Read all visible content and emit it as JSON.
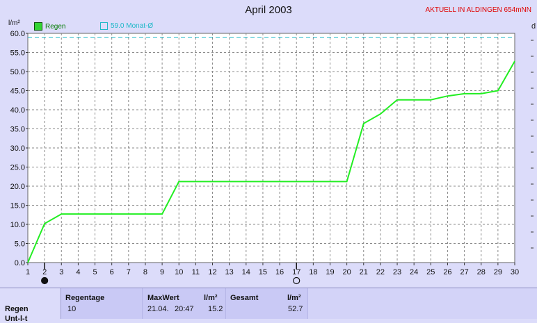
{
  "header": {
    "title": "April 2003",
    "station": "AKTUELL IN ALDINGEN 654mNN",
    "right_cut_label": "d"
  },
  "legend": {
    "regen_label": "Regen",
    "month_label": "59.0 Monat-Ø"
  },
  "colors": {
    "background": "#dcdcfa",
    "line": "#22ee22",
    "monthly_avg": "#1fb8c8",
    "station_text": "#e00000"
  },
  "chart_data": {
    "type": "line",
    "title": "April 2003",
    "ylabel": "l/m²",
    "ylim": [
      0,
      60
    ],
    "xlim": [
      1,
      30
    ],
    "x_ticks": [
      1,
      2,
      3,
      4,
      5,
      6,
      7,
      8,
      9,
      10,
      11,
      12,
      13,
      14,
      15,
      16,
      17,
      18,
      19,
      20,
      21,
      22,
      23,
      24,
      25,
      26,
      27,
      28,
      29,
      30
    ],
    "y_ticks": [
      "0.0",
      "5.0",
      "10.0",
      "15.0",
      "20.0",
      "25.0",
      "30.0",
      "35.0",
      "40.0",
      "45.0",
      "50.0",
      "55.0",
      "60.0"
    ],
    "grid": true,
    "series": [
      {
        "name": "Regen",
        "x": [
          1,
          2,
          3,
          4,
          5,
          6,
          7,
          8,
          9,
          10,
          11,
          12,
          13,
          14,
          15,
          16,
          17,
          18,
          19,
          20,
          21,
          22,
          23,
          24,
          25,
          26,
          27,
          28,
          29,
          30
        ],
        "y": [
          0.0,
          10.2,
          12.7,
          12.7,
          12.7,
          12.7,
          12.7,
          12.7,
          12.7,
          21.2,
          21.2,
          21.2,
          21.2,
          21.2,
          21.2,
          21.2,
          21.2,
          21.2,
          21.2,
          21.2,
          36.4,
          38.9,
          42.6,
          42.6,
          42.6,
          43.6,
          44.2,
          44.2,
          45.0,
          52.7
        ]
      }
    ],
    "reference_lines": [
      {
        "name": "59.0 Monat-Ø",
        "y": 59.0
      }
    ],
    "moon_markers": [
      {
        "x": 2,
        "phase": "new-moon"
      },
      {
        "x": 17,
        "phase": "full-moon"
      }
    ]
  },
  "table": {
    "row_label": "Regen",
    "row_label_cut": "Unt-l-t",
    "regentage": {
      "header": "Regentage",
      "value": "10"
    },
    "maxwert": {
      "header": "MaxWert",
      "unit": "l/m²",
      "date": "21.04.",
      "time": "20:47",
      "value": "15.2"
    },
    "gesamt": {
      "header": "Gesamt",
      "unit": "l/m²",
      "value": "52.7"
    }
  }
}
